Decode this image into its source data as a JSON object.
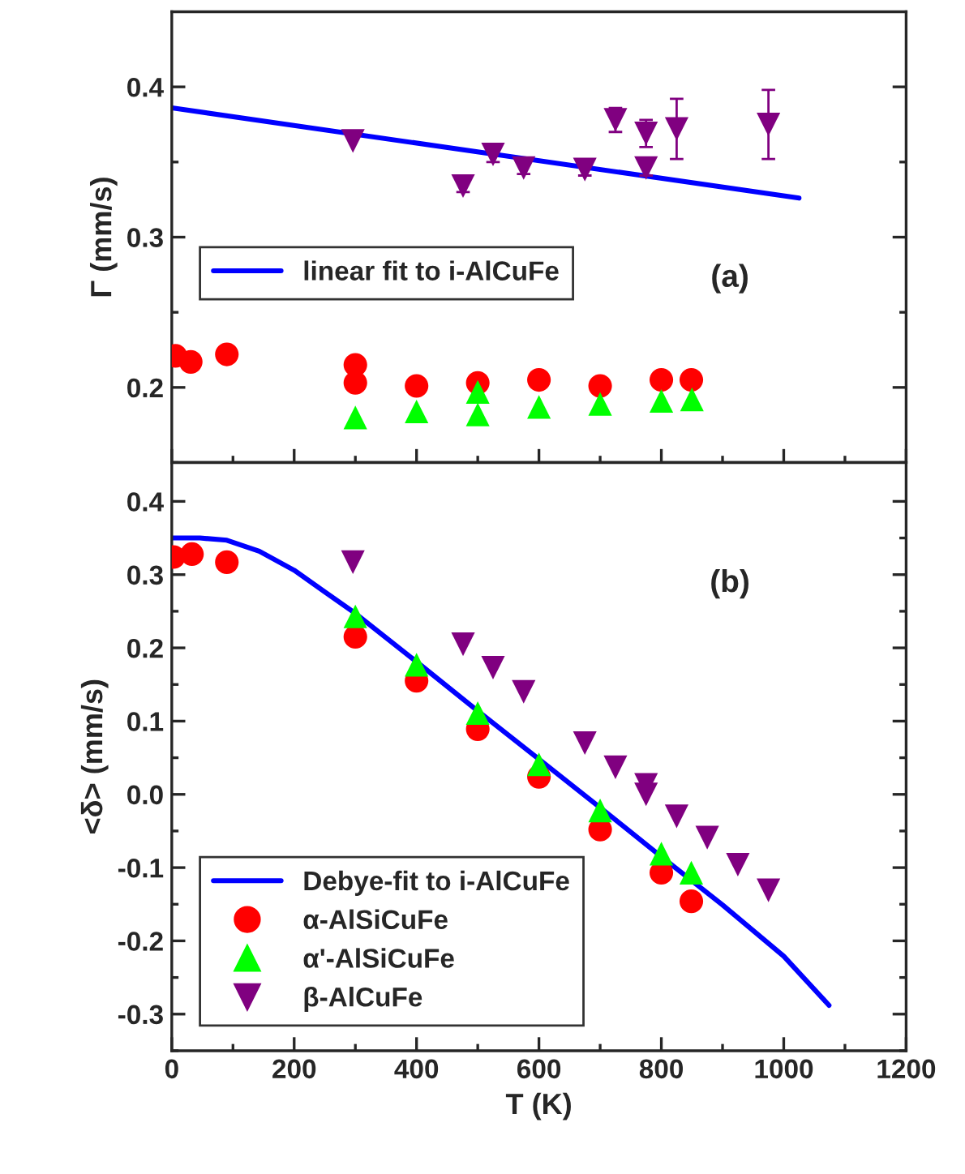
{
  "chart_data": [
    {
      "type": "scatter",
      "ylabel": "Γ (mm/s)",
      "xlim": [
        0,
        1200
      ],
      "ylim": [
        0.15,
        0.45
      ],
      "xticks": [
        0,
        200,
        400,
        600,
        800,
        1000,
        1200
      ],
      "yticks": [
        0.2,
        0.3,
        0.4
      ],
      "tick_labels": "y",
      "legend": "left",
      "annotations": [
        "(a)"
      ],
      "series": [
        {
          "type": "line",
          "name": "linear fit to i-AlCuFe",
          "color": "#0000ff",
          "marker": "none",
          "line_style": "solid",
          "x": [
            0,
            1025
          ],
          "values": [
            0.386,
            0.326
          ]
        },
        {
          "color": "#ff0000",
          "marker": "circle",
          "x": [
            6,
            31,
            90,
            300,
            300,
            400,
            500,
            600,
            700,
            800,
            849
          ],
          "values": [
            0.221,
            0.217,
            0.222,
            0.215,
            0.203,
            0.201,
            0.203,
            0.205,
            0.201,
            0.205,
            0.205
          ]
        },
        {
          "color": "#00ff00",
          "marker": "triangle",
          "x": [
            300,
            400,
            500,
            500,
            600,
            700,
            800,
            850
          ],
          "values": [
            0.18,
            0.184,
            0.197,
            0.182,
            0.187,
            0.189,
            0.191,
            0.192
          ]
        },
        {
          "color": "#800080",
          "marker": "triangle_down",
          "x": [
            296,
            476,
            525,
            575,
            675,
            725,
            775,
            775,
            825,
            975
          ],
          "values": [
            0.364,
            0.334,
            0.355,
            0.346,
            0.345,
            0.378,
            0.369,
            0.346,
            0.372,
            0.375
          ],
          "errors": [
            null,
            0.004,
            0.005,
            0.004,
            0.004,
            0.008,
            0.009,
            0.005,
            0.02,
            0.023
          ]
        }
      ]
    },
    {
      "type": "scatter",
      "xlabel": "T (K)",
      "ylabel": "<δ> (mm/s)",
      "xlim": [
        0,
        1200
      ],
      "ylim": [
        -0.35,
        0.453
      ],
      "xticks": [
        0,
        200,
        400,
        600,
        800,
        1000,
        1200
      ],
      "yticks": [
        {
          "value": -0.3,
          "label": "-0.3"
        },
        {
          "value": -0.2,
          "label": "-0.2"
        },
        {
          "value": -0.1,
          "label": "-0.1"
        },
        {
          "value": 0.0,
          "label": "0.0"
        },
        0.1,
        0.2,
        0.3,
        0.4
      ],
      "legend": "bottom left",
      "annotations": [
        "(b)"
      ],
      "series": [
        {
          "type": "line",
          "name": "Debye-fit to i-AlCuFe",
          "color": "#0000ff",
          "marker": "none",
          "line_style": "solid",
          "x": [
            0,
            46,
            90,
            143,
            200,
            249,
            300,
            400,
            500,
            600,
            700,
            800,
            900,
            1000,
            1074
          ],
          "values": [
            0.35,
            0.35,
            0.347,
            0.332,
            0.306,
            0.277,
            0.247,
            0.181,
            0.114,
            0.048,
            -0.018,
            -0.085,
            -0.151,
            -0.221,
            -0.288
          ]
        },
        {
          "name": "α-AlSiCuFe",
          "color": "#ff0000",
          "marker": "circle",
          "x": [
            3,
            33,
            90,
            300,
            400,
            500,
            600,
            700,
            800,
            849
          ],
          "values": [
            0.324,
            0.328,
            0.317,
            0.215,
            0.155,
            0.089,
            0.024,
            -0.048,
            -0.107,
            -0.146
          ]
        },
        {
          "name": "α'-AlSiCuFe",
          "color": "#00ff00",
          "marker": "triangle",
          "x": [
            300,
            400,
            500,
            600,
            700,
            800,
            849
          ],
          "values": [
            0.243,
            0.177,
            0.111,
            0.041,
            -0.022,
            -0.081,
            -0.107
          ]
        },
        {
          "name": "β-AlCuFe",
          "color": "#800080",
          "marker": "triangle_down",
          "x": [
            296,
            476,
            525,
            575,
            675,
            725,
            775,
            775,
            825,
            875,
            925,
            975
          ],
          "values": [
            0.317,
            0.205,
            0.173,
            0.14,
            0.07,
            0.037,
            0.013,
            0.0,
            -0.03,
            -0.059,
            -0.096,
            -0.131
          ]
        }
      ]
    }
  ]
}
